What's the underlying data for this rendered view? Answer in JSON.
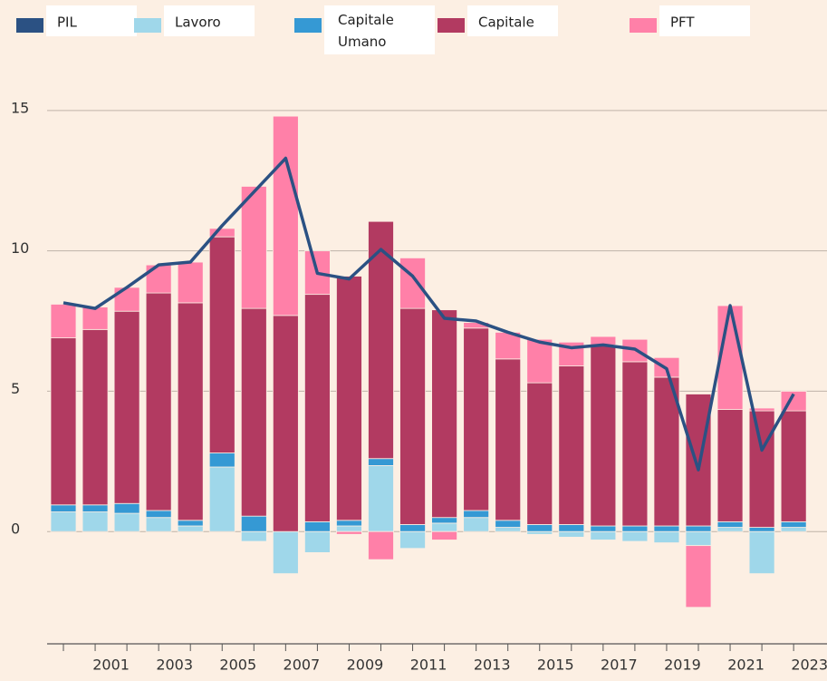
{
  "chart_data": {
    "type": "stacked_bar_line",
    "categories": [
      null,
      "2001",
      null,
      "2003",
      null,
      "2005",
      null,
      "2007",
      null,
      "2009",
      null,
      "2011",
      null,
      "2013",
      null,
      "2015",
      null,
      "2017",
      null,
      "2019",
      null,
      "2021",
      null,
      "2023"
    ],
    "series": [
      {
        "name": "PIL",
        "color": "#2b5183",
        "kind": "line",
        "values": [
          8.15,
          7.95,
          8.7,
          9.5,
          9.6,
          10.9,
          12.1,
          13.3,
          9.2,
          9.0,
          10.05,
          9.1,
          7.6,
          7.5,
          7.1,
          6.75,
          6.55,
          6.65,
          6.5,
          5.8,
          2.2,
          8.05,
          2.9,
          4.9
        ]
      },
      {
        "name": "Lavoro",
        "color": "#9fd7ea",
        "kind": "bar",
        "values": [
          0.7,
          0.7,
          0.65,
          0.5,
          0.2,
          2.3,
          -0.35,
          -1.5,
          -0.75,
          0.2,
          2.35,
          -0.6,
          0.3,
          0.5,
          0.15,
          -0.1,
          -0.2,
          -0.3,
          -0.35,
          -0.4,
          -0.5,
          0.15,
          -1.5,
          0.15
        ]
      },
      {
        "name": "Capitale Umano",
        "color": "#3599d4",
        "kind": "bar",
        "values": [
          0.25,
          0.25,
          0.35,
          0.25,
          0.2,
          0.5,
          0.55,
          0,
          0.35,
          0.2,
          0.25,
          0.25,
          0.2,
          0.25,
          0.25,
          0.25,
          0.25,
          0.2,
          0.2,
          0.2,
          0.2,
          0.2,
          0.15,
          0.2
        ]
      },
      {
        "name": "Capitale",
        "color": "#b23a61",
        "kind": "bar",
        "values": [
          5.95,
          6.25,
          6.85,
          7.75,
          7.75,
          7.7,
          7.4,
          7.7,
          8.1,
          8.7,
          8.45,
          7.7,
          7.4,
          6.5,
          5.75,
          5.05,
          5.65,
          6.45,
          5.85,
          5.3,
          4.7,
          4.0,
          4.15,
          3.95
        ]
      },
      {
        "name": "PFT",
        "color": "#ff80a8",
        "kind": "bar",
        "values": [
          1.2,
          0.8,
          0.85,
          1.0,
          1.45,
          0.3,
          4.35,
          7.1,
          1.55,
          -0.1,
          -1.0,
          1.8,
          -0.3,
          0.2,
          0.95,
          1.55,
          0.85,
          0.3,
          0.8,
          0.7,
          -2.2,
          3.7,
          0.1,
          0.7
        ]
      }
    ],
    "ylim": [
      -4,
      17
    ],
    "yticks": [
      0,
      5,
      10,
      15
    ],
    "grid": true,
    "legend": "top"
  }
}
